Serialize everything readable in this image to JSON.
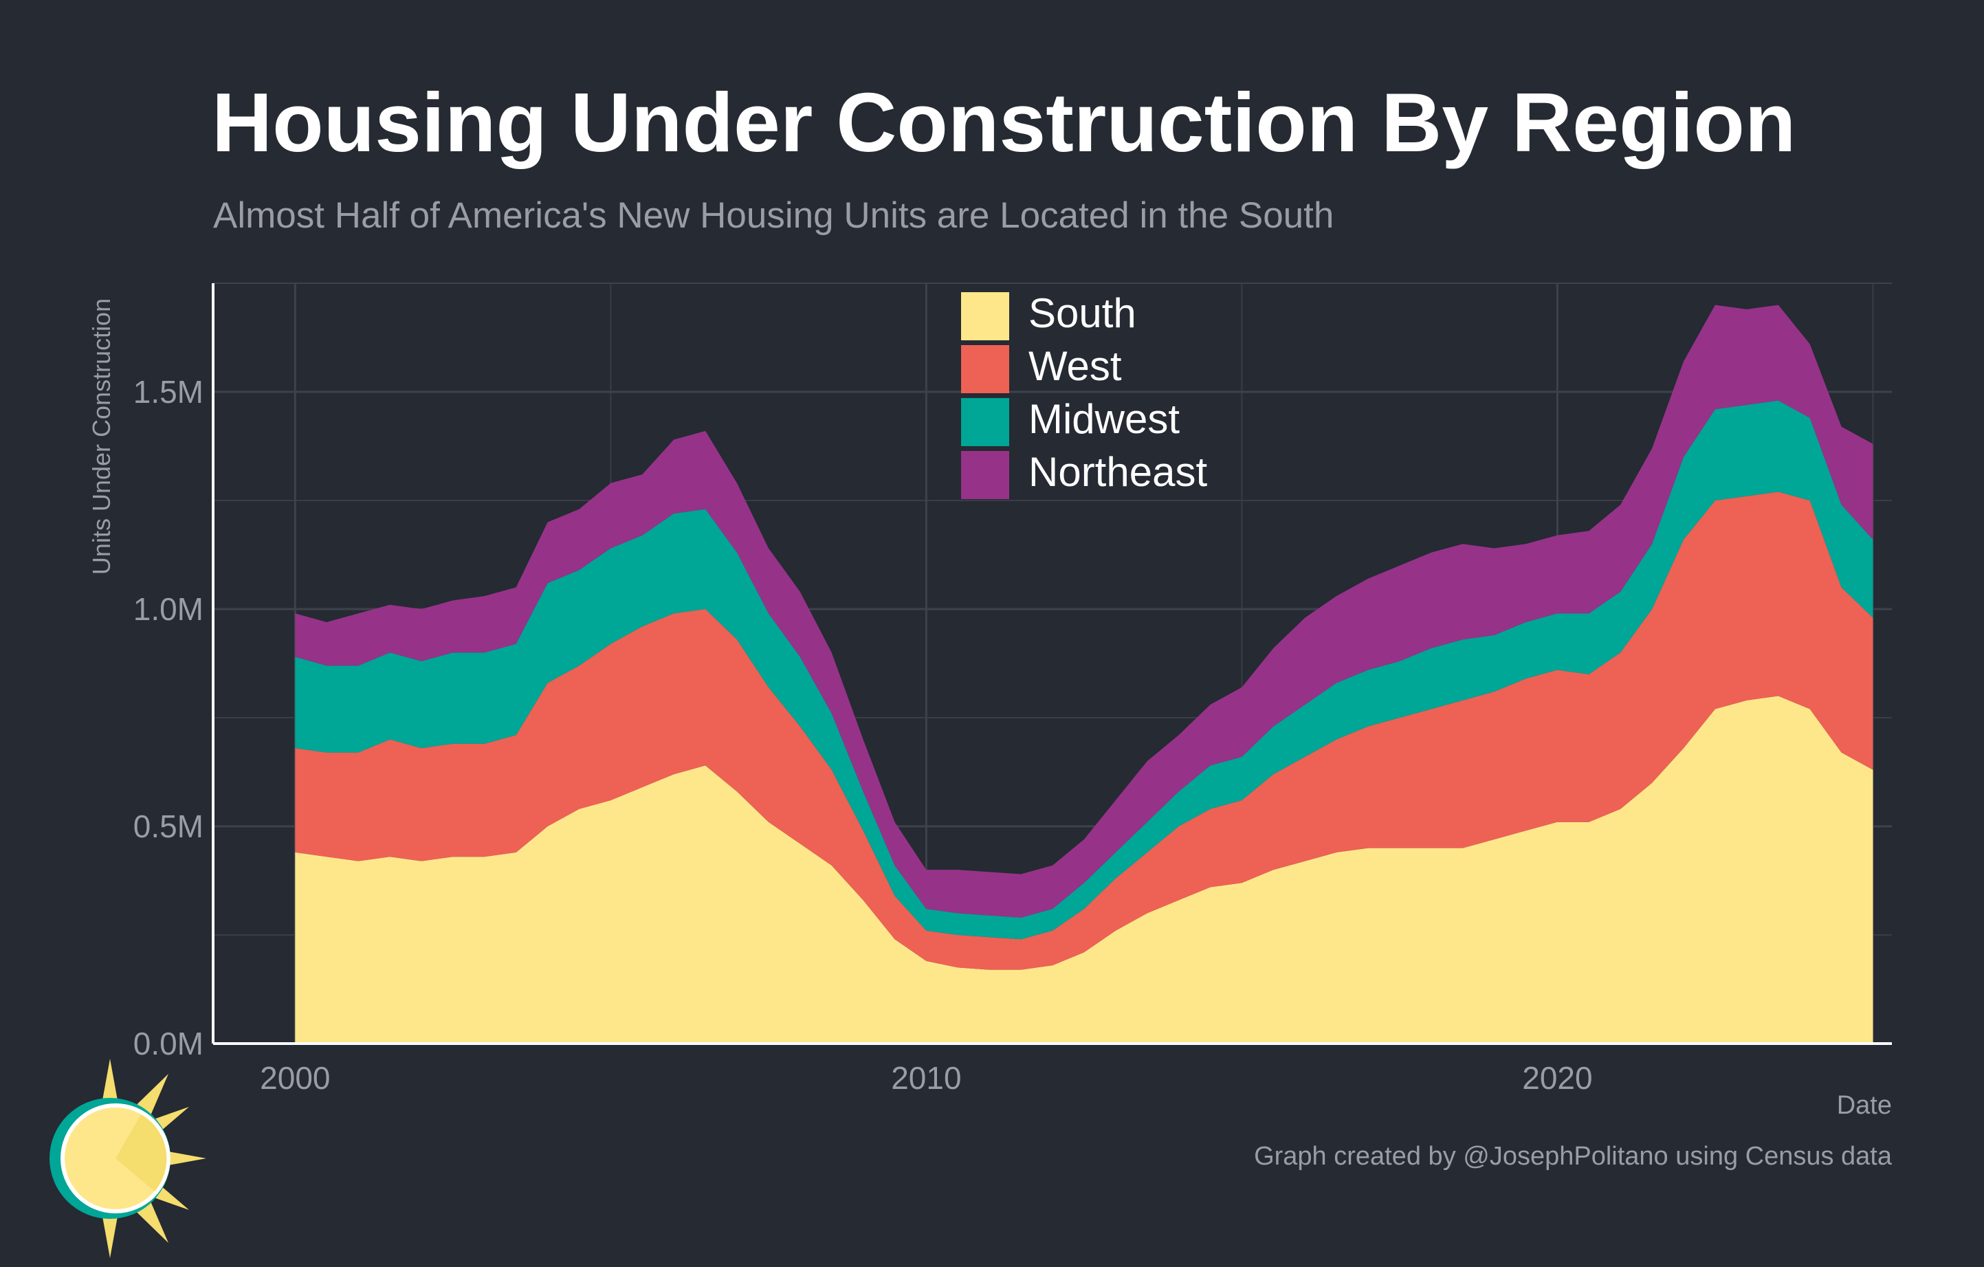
{
  "title": "Housing Under Construction By Region",
  "subtitle": "Almost Half of America's New Housing Units are Located in the South",
  "caption": "Graph created by @JosephPolitano using Census data",
  "chart_data": {
    "type": "area",
    "stacked": true,
    "xlabel": "Date",
    "ylabel": "Units Under Construction",
    "xlim": [
      1998.7,
      2025.3
    ],
    "ylim": [
      0,
      1.75
    ],
    "x_ticks": [
      2000,
      2010,
      2020
    ],
    "x_tick_labels": [
      "2000",
      "2010",
      "2020"
    ],
    "y_ticks": [
      0,
      0.5,
      1.0,
      1.5
    ],
    "y_tick_labels": [
      "0.0M",
      "0.5M",
      "1.0M",
      "1.5M"
    ],
    "grid": true,
    "legend_position": "top-center",
    "x": [
      2000.0,
      2000.5,
      2001.0,
      2001.5,
      2002.0,
      2002.5,
      2003.0,
      2003.5,
      2004.0,
      2004.5,
      2005.0,
      2005.5,
      2006.0,
      2006.5,
      2007.0,
      2007.5,
      2008.0,
      2008.5,
      2009.0,
      2009.5,
      2010.0,
      2010.5,
      2011.0,
      2011.5,
      2012.0,
      2012.5,
      2013.0,
      2013.5,
      2014.0,
      2014.5,
      2015.0,
      2015.5,
      2016.0,
      2016.5,
      2017.0,
      2017.5,
      2018.0,
      2018.5,
      2019.0,
      2019.5,
      2020.0,
      2020.5,
      2021.0,
      2021.5,
      2022.0,
      2022.5,
      2023.0,
      2023.5,
      2024.0,
      2024.5,
      2025.0
    ],
    "series": [
      {
        "name": "South",
        "color": "#fee78a",
        "values": [
          0.44,
          0.43,
          0.42,
          0.43,
          0.42,
          0.43,
          0.43,
          0.44,
          0.5,
          0.54,
          0.56,
          0.59,
          0.62,
          0.64,
          0.58,
          0.51,
          0.46,
          0.41,
          0.33,
          0.24,
          0.19,
          0.175,
          0.17,
          0.17,
          0.18,
          0.21,
          0.26,
          0.3,
          0.33,
          0.36,
          0.37,
          0.4,
          0.42,
          0.44,
          0.45,
          0.45,
          0.45,
          0.45,
          0.47,
          0.49,
          0.51,
          0.51,
          0.54,
          0.6,
          0.68,
          0.77,
          0.79,
          0.8,
          0.77,
          0.67,
          0.63
        ]
      },
      {
        "name": "West",
        "color": "#ee6155",
        "values": [
          0.24,
          0.24,
          0.25,
          0.27,
          0.26,
          0.26,
          0.26,
          0.27,
          0.33,
          0.33,
          0.36,
          0.37,
          0.37,
          0.36,
          0.35,
          0.31,
          0.27,
          0.22,
          0.16,
          0.1,
          0.07,
          0.075,
          0.075,
          0.07,
          0.08,
          0.1,
          0.12,
          0.14,
          0.17,
          0.18,
          0.19,
          0.22,
          0.24,
          0.26,
          0.28,
          0.3,
          0.32,
          0.34,
          0.34,
          0.35,
          0.35,
          0.34,
          0.36,
          0.4,
          0.48,
          0.48,
          0.47,
          0.47,
          0.48,
          0.38,
          0.35
        ]
      },
      {
        "name": "Midwest",
        "color": "#00a696",
        "values": [
          0.21,
          0.2,
          0.2,
          0.2,
          0.2,
          0.21,
          0.21,
          0.21,
          0.23,
          0.22,
          0.22,
          0.21,
          0.23,
          0.23,
          0.2,
          0.17,
          0.16,
          0.13,
          0.09,
          0.07,
          0.05,
          0.05,
          0.05,
          0.05,
          0.05,
          0.06,
          0.06,
          0.07,
          0.08,
          0.1,
          0.1,
          0.11,
          0.12,
          0.13,
          0.13,
          0.13,
          0.14,
          0.14,
          0.13,
          0.13,
          0.13,
          0.14,
          0.14,
          0.15,
          0.19,
          0.21,
          0.21,
          0.21,
          0.19,
          0.19,
          0.18
        ]
      },
      {
        "name": "Northeast",
        "color": "#963388",
        "values": [
          0.1,
          0.1,
          0.12,
          0.11,
          0.12,
          0.12,
          0.13,
          0.13,
          0.14,
          0.14,
          0.15,
          0.14,
          0.17,
          0.18,
          0.16,
          0.15,
          0.15,
          0.14,
          0.12,
          0.1,
          0.09,
          0.1,
          0.1,
          0.1,
          0.1,
          0.1,
          0.12,
          0.14,
          0.13,
          0.14,
          0.16,
          0.18,
          0.2,
          0.2,
          0.21,
          0.22,
          0.22,
          0.22,
          0.2,
          0.18,
          0.18,
          0.19,
          0.2,
          0.22,
          0.22,
          0.24,
          0.22,
          0.22,
          0.17,
          0.18,
          0.22
        ]
      }
    ]
  }
}
